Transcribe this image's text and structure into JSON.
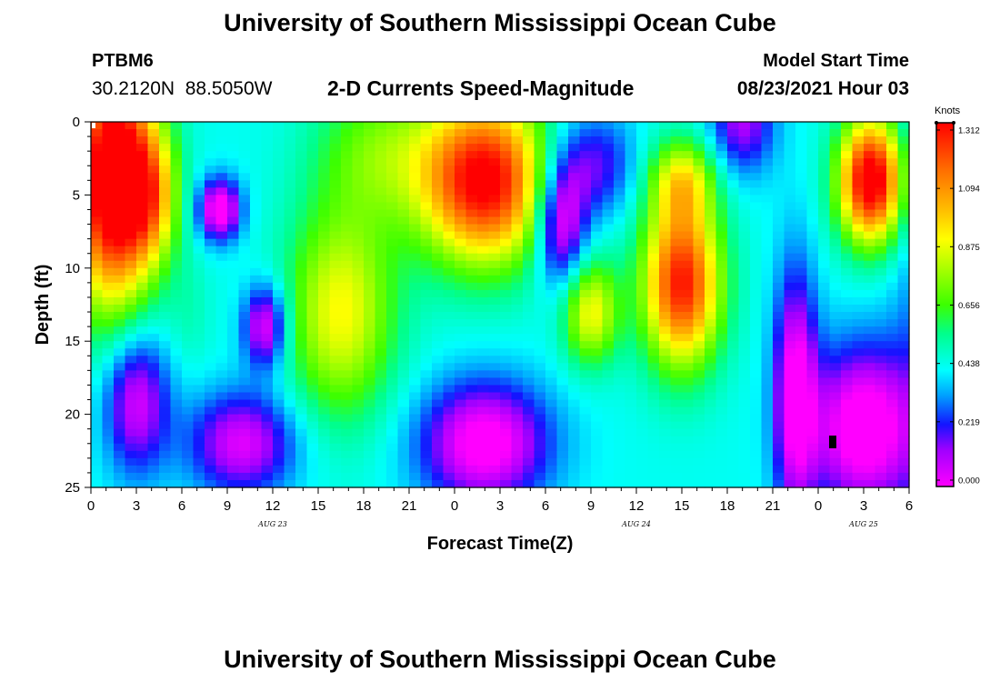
{
  "title": "University of Southern Mississippi Ocean Cube",
  "footer_title": "University of Southern Mississippi Ocean Cube",
  "station": {
    "id": "PTBM6",
    "coords": "30.2120N  88.5050W"
  },
  "plot_title": "2-D Currents Speed-Magnitude",
  "model": {
    "label": "Model Start Time",
    "time": "08/23/2021 Hour 03"
  },
  "chart_data": {
    "type": "heatmap",
    "title": "2-D Currents Speed-Magnitude",
    "xlabel": "Forecast Time(Z)",
    "ylabel": "Depth (ft)",
    "x_ticks": [
      "0",
      "3",
      "6",
      "9",
      "12",
      "15",
      "18",
      "21",
      "0",
      "3",
      "6",
      "9",
      "12",
      "15",
      "18",
      "21",
      "0",
      "3",
      "6"
    ],
    "x_range_hours": [
      0,
      54
    ],
    "y_ticks": [
      "0",
      "5",
      "10",
      "15",
      "20",
      "25"
    ],
    "y_range": [
      0,
      25
    ],
    "y_reversed": true,
    "date_labels": [
      {
        "text": "AUG 23",
        "at_hour": 12
      },
      {
        "text": "AUG 24",
        "at_hour": 36
      },
      {
        "text": "AUG 25",
        "at_hour": 51
      }
    ],
    "colorbar": {
      "unit": "Knots",
      "ticks": [
        "1.312",
        "1.094",
        "0.875",
        "0.656",
        "0.438",
        "0.219",
        "0.000"
      ],
      "range": [
        0,
        1.312
      ]
    },
    "blobs": [
      {
        "t": 1.5,
        "d": 4,
        "st": 2.0,
        "sd": 6,
        "v": 0.83
      },
      {
        "t": 4.0,
        "d": 5,
        "st": 1.2,
        "sd": 3,
        "v": 0.3
      },
      {
        "t": 3,
        "d": 19,
        "st": 1.5,
        "sd": 3.5,
        "v": -0.3
      },
      {
        "t": 6.5,
        "d": 13,
        "st": 1.0,
        "sd": 3,
        "v": 0.05
      },
      {
        "t": 8.5,
        "d": 6,
        "st": 1.0,
        "sd": 1.5,
        "v": -0.38
      },
      {
        "t": 11.5,
        "d": 14,
        "st": 1.0,
        "sd": 2,
        "v": -0.33
      },
      {
        "t": 10,
        "d": 22,
        "st": 2.5,
        "sd": 2.5,
        "v": -0.3
      },
      {
        "t": 16.5,
        "d": 13,
        "st": 2.5,
        "sd": 5,
        "v": 0.35
      },
      {
        "t": 19,
        "d": 2,
        "st": 3.0,
        "sd": 3.5,
        "v": 0.2
      },
      {
        "t": 26,
        "d": 4,
        "st": 3.0,
        "sd": 4,
        "v": 0.7
      },
      {
        "t": 26,
        "d": 22,
        "st": 3.0,
        "sd": 3,
        "v": -0.37
      },
      {
        "t": 31,
        "d": 7,
        "st": 1.2,
        "sd": 3,
        "v": -0.37
      },
      {
        "t": 33,
        "d": 13,
        "st": 1.3,
        "sd": 2.5,
        "v": 0.35
      },
      {
        "t": 33,
        "d": 3,
        "st": 2.0,
        "sd": 2.5,
        "v": -0.22
      },
      {
        "t": 39,
        "d": 11,
        "st": 1.8,
        "sd": 4,
        "v": 0.65
      },
      {
        "t": 39,
        "d": 4,
        "st": 1.5,
        "sd": 2,
        "v": 0.3
      },
      {
        "t": 43,
        "d": 0,
        "st": 1.5,
        "sd": 2.5,
        "v": -0.25
      },
      {
        "t": 46.5,
        "d": 18.5,
        "st": 1.0,
        "sd": 6,
        "v": -0.35
      },
      {
        "t": 51.5,
        "d": 4,
        "st": 1.5,
        "sd": 3,
        "v": 0.75
      },
      {
        "t": 51,
        "d": 21,
        "st": 2.5,
        "sd": 4,
        "v": -0.4
      },
      {
        "t": 55,
        "d": 12,
        "st": 1.5,
        "sd": 15,
        "v": -0.1
      }
    ],
    "base_value": 0.33,
    "grid": false,
    "legend": "right"
  }
}
